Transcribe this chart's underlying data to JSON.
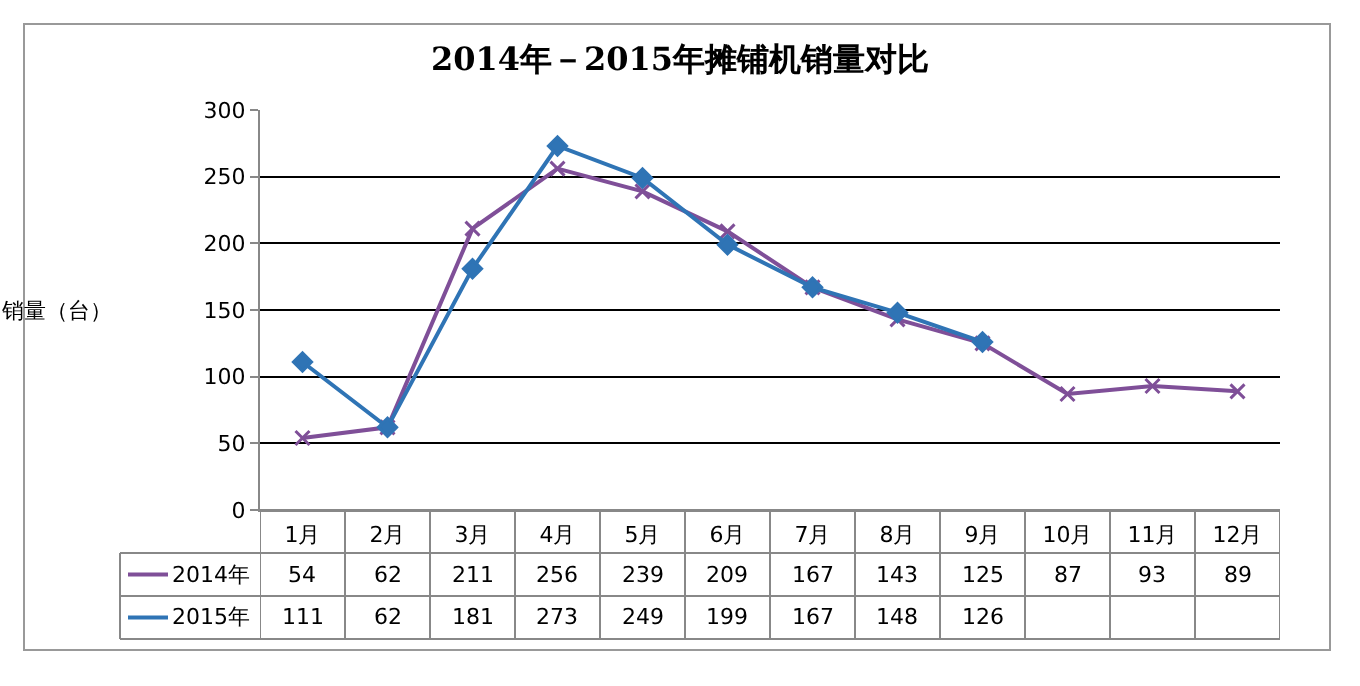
{
  "chart_data": {
    "type": "line",
    "title": "2014年－2015年摊铺机销量对比",
    "ylabel": "销量（台）",
    "categories": [
      "1月",
      "2月",
      "3月",
      "4月",
      "5月",
      "6月",
      "7月",
      "8月",
      "9月",
      "10月",
      "11月",
      "12月"
    ],
    "series": [
      {
        "name": "2014年",
        "color": "#7f4f98",
        "marker": "cross",
        "values": [
          54,
          62,
          211,
          256,
          239,
          209,
          167,
          143,
          125,
          87,
          93,
          89
        ]
      },
      {
        "name": "2015年",
        "color": "#2f74b5",
        "marker": "diamond",
        "values": [
          111,
          62,
          181,
          273,
          249,
          199,
          167,
          148,
          126,
          null,
          null,
          null
        ]
      }
    ],
    "ylim": [
      0,
      300
    ],
    "yticks": [
      0,
      50,
      100,
      150,
      200,
      250,
      300
    ],
    "grid": "y",
    "legend": "bottom",
    "data_labels": true
  }
}
